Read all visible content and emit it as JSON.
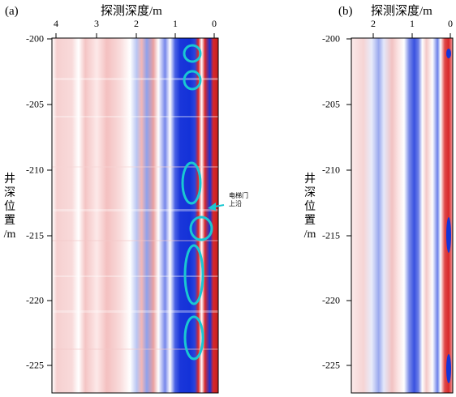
{
  "panels": [
    {
      "id": "a",
      "label": "(a)",
      "x_title": "探测深度/m",
      "x_ticks": [
        "4",
        "3",
        "2",
        "1",
        "0"
      ],
      "y_title_lines": [
        "井",
        "深",
        "位",
        "置",
        "/m"
      ],
      "y_ticks": [
        "-200",
        "-205",
        "-210",
        "-215",
        "-220",
        "-225"
      ]
    },
    {
      "id": "b",
      "label": "(b)",
      "x_title": "探测深度/m",
      "x_ticks": [
        "2",
        "1",
        "0"
      ],
      "y_title_lines": [
        "井",
        "深",
        "位",
        "置",
        "/m"
      ],
      "y_ticks": [
        "-200",
        "-205",
        "-210",
        "-215",
        "-220",
        "-225"
      ]
    }
  ],
  "annotation": {
    "lines": [
      "电梯门",
      "上沿"
    ],
    "color": "#19c8d2"
  },
  "colors": {
    "red": "#d8282a",
    "blue": "#1432d8",
    "white": "#ffffff",
    "highlight": "#19c8d2"
  }
}
